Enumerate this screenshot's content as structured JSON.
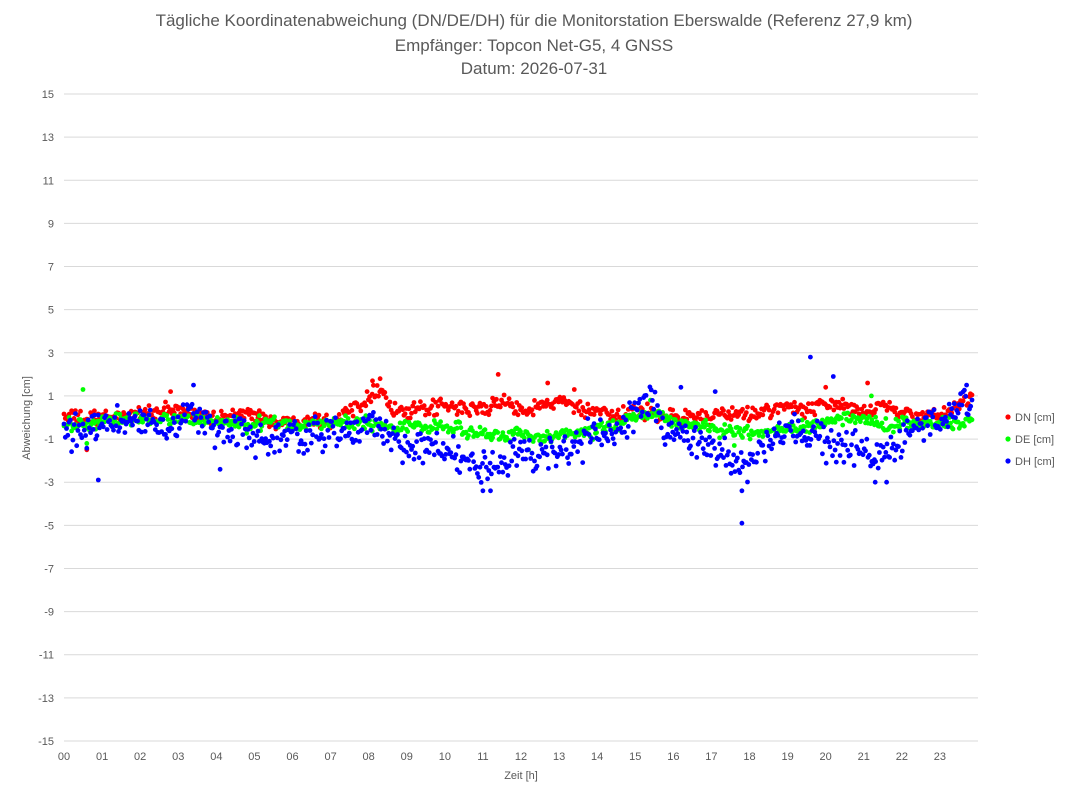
{
  "chart_data": {
    "type": "scatter",
    "title": "Tägliche Koordinatenabweichung (DN/DE/DH) für die Monitorstation Eberswalde (Referenz 27,9 km)",
    "subtitle_lines": [
      "Empfänger: Topcon Net-G5, 4 GNSS",
      "Datum: 2026-07-31"
    ],
    "xlabel": "Zeit [h]",
    "ylabel": "Abweichung [cm]",
    "xlim": [
      0,
      24
    ],
    "ylim": [
      -15,
      15
    ],
    "x_ticks": [
      "00",
      "01",
      "02",
      "03",
      "04",
      "05",
      "06",
      "07",
      "08",
      "09",
      "10",
      "11",
      "12",
      "13",
      "14",
      "15",
      "16",
      "17",
      "18",
      "19",
      "20",
      "21",
      "22",
      "23"
    ],
    "y_ticks": [
      "15",
      "13",
      "11",
      "9",
      "7",
      "5",
      "3",
      "1",
      "-1",
      "-3",
      "-5",
      "-7",
      "-9",
      "-11",
      "-13",
      "-15"
    ],
    "grid": "horizontal",
    "legend_position": "right",
    "sampling_interval_h": 0.0333,
    "series": [
      {
        "name": "DN [cm]",
        "color": "#ff0000",
        "profile": [
          {
            "x": 0.0,
            "y": 0.1
          },
          {
            "x": 0.5,
            "y": -0.1
          },
          {
            "x": 1.0,
            "y": 0.0
          },
          {
            "x": 1.5,
            "y": 0.1
          },
          {
            "x": 2.0,
            "y": 0.2
          },
          {
            "x": 2.5,
            "y": 0.2
          },
          {
            "x": 3.0,
            "y": 0.4
          },
          {
            "x": 3.5,
            "y": 0.1
          },
          {
            "x": 4.0,
            "y": 0.0
          },
          {
            "x": 4.5,
            "y": 0.0
          },
          {
            "x": 5.0,
            "y": 0.3
          },
          {
            "x": 5.5,
            "y": -0.3
          },
          {
            "x": 6.0,
            "y": -0.2
          },
          {
            "x": 6.5,
            "y": 0.0
          },
          {
            "x": 7.0,
            "y": -0.2
          },
          {
            "x": 7.5,
            "y": 0.3
          },
          {
            "x": 8.0,
            "y": 1.0
          },
          {
            "x": 8.3,
            "y": 1.4
          },
          {
            "x": 8.6,
            "y": 0.4
          },
          {
            "x": 9.0,
            "y": 0.2
          },
          {
            "x": 9.5,
            "y": 0.4
          },
          {
            "x": 10.0,
            "y": 0.5
          },
          {
            "x": 10.5,
            "y": 0.4
          },
          {
            "x": 11.0,
            "y": 0.4
          },
          {
            "x": 11.5,
            "y": 0.7
          },
          {
            "x": 12.0,
            "y": 0.4
          },
          {
            "x": 12.5,
            "y": 0.5
          },
          {
            "x": 13.0,
            "y": 0.8
          },
          {
            "x": 13.5,
            "y": 0.4
          },
          {
            "x": 14.0,
            "y": 0.2
          },
          {
            "x": 14.5,
            "y": 0.0
          },
          {
            "x": 15.0,
            "y": 0.3
          },
          {
            "x": 15.5,
            "y": 0.2
          },
          {
            "x": 16.0,
            "y": 0.0
          },
          {
            "x": 16.5,
            "y": 0.1
          },
          {
            "x": 17.0,
            "y": 0.0
          },
          {
            "x": 17.5,
            "y": 0.1
          },
          {
            "x": 18.0,
            "y": 0.2
          },
          {
            "x": 18.5,
            "y": 0.3
          },
          {
            "x": 19.0,
            "y": 0.5
          },
          {
            "x": 19.5,
            "y": 0.3
          },
          {
            "x": 20.0,
            "y": 0.7
          },
          {
            "x": 20.5,
            "y": 0.4
          },
          {
            "x": 21.0,
            "y": 0.3
          },
          {
            "x": 21.5,
            "y": 0.6
          },
          {
            "x": 22.0,
            "y": 0.2
          },
          {
            "x": 22.5,
            "y": 0.0
          },
          {
            "x": 23.0,
            "y": 0.2
          },
          {
            "x": 23.5,
            "y": 0.5
          },
          {
            "x": 23.8,
            "y": 0.9
          }
        ],
        "outliers": [
          {
            "x": 0.6,
            "y": -1.5
          },
          {
            "x": 2.8,
            "y": 1.2
          },
          {
            "x": 8.1,
            "y": 1.7
          },
          {
            "x": 8.3,
            "y": 1.8
          },
          {
            "x": 11.4,
            "y": 2.0
          },
          {
            "x": 12.7,
            "y": 1.6
          },
          {
            "x": 13.4,
            "y": 1.3
          },
          {
            "x": 20.0,
            "y": 1.4
          },
          {
            "x": 21.1,
            "y": 1.6
          },
          {
            "x": 23.8,
            "y": 1.1
          }
        ]
      },
      {
        "name": "DE [cm]",
        "color": "#00ff00",
        "profile": [
          {
            "x": 0.0,
            "y": -0.3
          },
          {
            "x": 0.5,
            "y": -0.4
          },
          {
            "x": 1.0,
            "y": -0.2
          },
          {
            "x": 1.5,
            "y": -0.1
          },
          {
            "x": 2.0,
            "y": 0.0
          },
          {
            "x": 2.5,
            "y": -0.2
          },
          {
            "x": 3.0,
            "y": 0.0
          },
          {
            "x": 3.5,
            "y": -0.1
          },
          {
            "x": 4.0,
            "y": -0.2
          },
          {
            "x": 4.5,
            "y": -0.3
          },
          {
            "x": 5.0,
            "y": -0.4
          },
          {
            "x": 5.5,
            "y": -0.2
          },
          {
            "x": 6.0,
            "y": -0.3
          },
          {
            "x": 6.5,
            "y": -0.3
          },
          {
            "x": 7.0,
            "y": -0.3
          },
          {
            "x": 7.5,
            "y": -0.2
          },
          {
            "x": 8.0,
            "y": -0.3
          },
          {
            "x": 8.5,
            "y": -0.4
          },
          {
            "x": 9.0,
            "y": -0.4
          },
          {
            "x": 9.5,
            "y": -0.4
          },
          {
            "x": 10.0,
            "y": -0.5
          },
          {
            "x": 10.5,
            "y": -0.6
          },
          {
            "x": 11.0,
            "y": -0.7
          },
          {
            "x": 11.5,
            "y": -0.8
          },
          {
            "x": 12.0,
            "y": -0.8
          },
          {
            "x": 12.5,
            "y": -0.9
          },
          {
            "x": 13.0,
            "y": -0.8
          },
          {
            "x": 13.5,
            "y": -0.7
          },
          {
            "x": 14.0,
            "y": -0.6
          },
          {
            "x": 14.5,
            "y": -0.3
          },
          {
            "x": 15.0,
            "y": 0.0
          },
          {
            "x": 15.5,
            "y": 0.2
          },
          {
            "x": 16.0,
            "y": -0.2
          },
          {
            "x": 16.5,
            "y": -0.3
          },
          {
            "x": 17.0,
            "y": -0.5
          },
          {
            "x": 17.5,
            "y": -0.7
          },
          {
            "x": 18.0,
            "y": -0.7
          },
          {
            "x": 18.5,
            "y": -0.6
          },
          {
            "x": 19.0,
            "y": -0.5
          },
          {
            "x": 19.5,
            "y": -0.4
          },
          {
            "x": 20.0,
            "y": -0.3
          },
          {
            "x": 20.5,
            "y": 0.0
          },
          {
            "x": 21.0,
            "y": -0.1
          },
          {
            "x": 21.5,
            "y": -0.4
          },
          {
            "x": 22.0,
            "y": -0.3
          },
          {
            "x": 22.5,
            "y": -0.3
          },
          {
            "x": 23.0,
            "y": -0.3
          },
          {
            "x": 23.5,
            "y": -0.2
          },
          {
            "x": 23.8,
            "y": -0.2
          }
        ],
        "outliers": [
          {
            "x": 0.5,
            "y": 1.3
          },
          {
            "x": 0.6,
            "y": -1.2
          },
          {
            "x": 12.2,
            "y": -1.5
          },
          {
            "x": 15.4,
            "y": 0.8
          },
          {
            "x": 17.6,
            "y": -1.3
          },
          {
            "x": 21.2,
            "y": 1.0
          }
        ]
      },
      {
        "name": "DH [cm]",
        "color": "#0000ff",
        "profile": [
          {
            "x": 0.0,
            "y": -0.6
          },
          {
            "x": 0.5,
            "y": -0.8
          },
          {
            "x": 1.0,
            "y": -0.5
          },
          {
            "x": 1.5,
            "y": -0.2
          },
          {
            "x": 2.0,
            "y": 0.0
          },
          {
            "x": 2.5,
            "y": -0.5
          },
          {
            "x": 3.0,
            "y": -0.2
          },
          {
            "x": 3.3,
            "y": 0.5
          },
          {
            "x": 3.7,
            "y": -0.3
          },
          {
            "x": 4.0,
            "y": -0.6
          },
          {
            "x": 4.5,
            "y": -0.6
          },
          {
            "x": 5.0,
            "y": -1.0
          },
          {
            "x": 5.5,
            "y": -1.1
          },
          {
            "x": 6.0,
            "y": -0.9
          },
          {
            "x": 6.5,
            "y": -0.8
          },
          {
            "x": 7.0,
            "y": -0.7
          },
          {
            "x": 7.5,
            "y": -0.6
          },
          {
            "x": 8.0,
            "y": -0.3
          },
          {
            "x": 8.5,
            "y": -1.0
          },
          {
            "x": 9.0,
            "y": -1.2
          },
          {
            "x": 9.5,
            "y": -1.3
          },
          {
            "x": 10.0,
            "y": -1.6
          },
          {
            "x": 10.5,
            "y": -2.0
          },
          {
            "x": 11.0,
            "y": -2.4
          },
          {
            "x": 11.5,
            "y": -2.0
          },
          {
            "x": 12.0,
            "y": -1.6
          },
          {
            "x": 12.5,
            "y": -2.0
          },
          {
            "x": 13.0,
            "y": -1.4
          },
          {
            "x": 13.5,
            "y": -1.2
          },
          {
            "x": 14.0,
            "y": -0.9
          },
          {
            "x": 14.5,
            "y": -0.6
          },
          {
            "x": 15.0,
            "y": 0.1
          },
          {
            "x": 15.4,
            "y": 1.0
          },
          {
            "x": 15.8,
            "y": -0.6
          },
          {
            "x": 16.3,
            "y": -0.8
          },
          {
            "x": 16.8,
            "y": -1.3
          },
          {
            "x": 17.3,
            "y": -1.8
          },
          {
            "x": 17.8,
            "y": -2.3
          },
          {
            "x": 18.3,
            "y": -1.6
          },
          {
            "x": 18.8,
            "y": -1.0
          },
          {
            "x": 19.3,
            "y": -0.6
          },
          {
            "x": 19.8,
            "y": -1.0
          },
          {
            "x": 20.3,
            "y": -1.6
          },
          {
            "x": 20.8,
            "y": -1.4
          },
          {
            "x": 21.3,
            "y": -1.8
          },
          {
            "x": 21.8,
            "y": -1.5
          },
          {
            "x": 22.3,
            "y": -0.5
          },
          {
            "x": 22.8,
            "y": -0.3
          },
          {
            "x": 23.3,
            "y": 0.2
          },
          {
            "x": 23.8,
            "y": 0.8
          }
        ],
        "outliers": [
          {
            "x": 0.9,
            "y": -2.9
          },
          {
            "x": 3.4,
            "y": 1.5
          },
          {
            "x": 4.1,
            "y": -2.4
          },
          {
            "x": 11.0,
            "y": -3.4
          },
          {
            "x": 11.2,
            "y": -3.4
          },
          {
            "x": 16.2,
            "y": 1.4
          },
          {
            "x": 17.1,
            "y": 1.2
          },
          {
            "x": 17.8,
            "y": -4.9
          },
          {
            "x": 17.8,
            "y": -3.4
          },
          {
            "x": 19.6,
            "y": 2.8
          },
          {
            "x": 20.2,
            "y": 1.9
          },
          {
            "x": 21.3,
            "y": -3.0
          },
          {
            "x": 21.6,
            "y": -3.0
          },
          {
            "x": 23.7,
            "y": 1.5
          }
        ]
      }
    ]
  }
}
